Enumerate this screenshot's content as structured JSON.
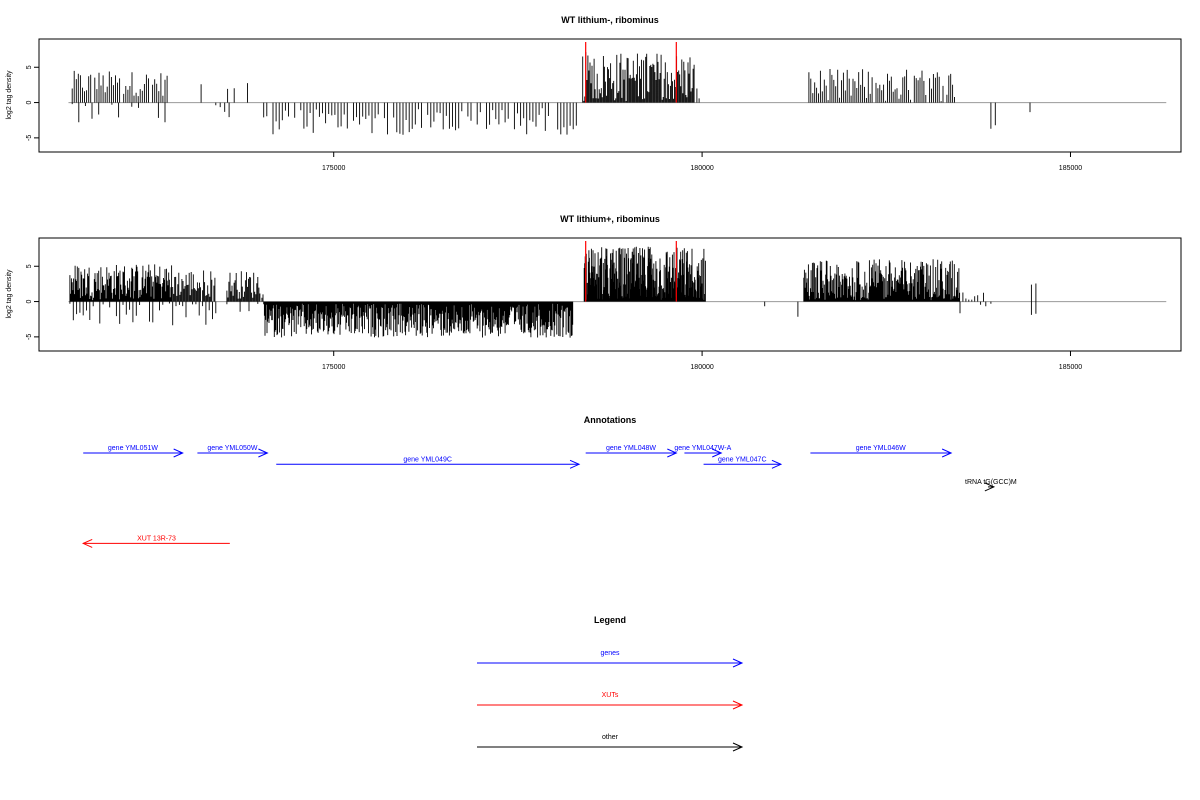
{
  "colors": {
    "bar": "#000000",
    "marker": "#ff0000",
    "baseline": "#999999",
    "gene": "#0000ff",
    "xut": "#ff0000",
    "other": "#000000"
  },
  "chart_data": [
    {
      "type": "bar",
      "title": "WT lithium-, ribominus",
      "ylabel": "log2 tag density",
      "xlim": [
        171000,
        186500
      ],
      "ylim": [
        -7,
        9
      ],
      "xticks": [
        175000,
        180000,
        185000
      ],
      "yticks": [
        -5,
        0,
        5
      ],
      "markers": [
        178420,
        179650
      ],
      "segments": [
        {
          "x0": 171450,
          "x1": 172750,
          "sign": 1,
          "mean": 2.7,
          "amp": 1.8,
          "step": 28,
          "gap": 0.15
        },
        {
          "x0": 171450,
          "x1": 172750,
          "sign": -1,
          "mean": 1.0,
          "amp": 1.8,
          "step": 90,
          "gap": 0.35
        },
        {
          "x0": 173200,
          "x1": 173900,
          "sign": 1,
          "mean": 1.5,
          "amp": 1.5,
          "step": 90,
          "gap": 0.5
        },
        {
          "x0": 173400,
          "x1": 173600,
          "sign": -1,
          "mean": 1.5,
          "amp": 1.5,
          "step": 60,
          "gap": 0.3
        },
        {
          "x0": 174050,
          "x1": 178300,
          "sign": -1,
          "mean": 2.6,
          "amp": 2.0,
          "step": 42,
          "gap": 0.12
        },
        {
          "x0": 178380,
          "x1": 179900,
          "sign": 1,
          "mean": 3.6,
          "amp": 3.6,
          "step": 14,
          "gap": 0.0
        },
        {
          "x0": 179900,
          "x1": 180050,
          "sign": 1,
          "mean": 1.0,
          "amp": 1.0,
          "step": 30,
          "gap": 0.3
        },
        {
          "x0": 181450,
          "x1": 183450,
          "sign": 1,
          "mean": 2.4,
          "amp": 2.4,
          "step": 26,
          "gap": 0.08
        },
        {
          "x0": 183920,
          "x1": 183980,
          "sign": -1,
          "mean": 3.5,
          "amp": 0.5,
          "step": 60,
          "gap": 0
        },
        {
          "x0": 184450,
          "x1": 184500,
          "sign": -1,
          "mean": 1.5,
          "amp": 0.3,
          "step": 60,
          "gap": 0
        }
      ]
    },
    {
      "type": "bar",
      "title": "WT lithium+, ribominus",
      "ylabel": "log2 tag density",
      "xlim": [
        171000,
        186500
      ],
      "ylim": [
        -7,
        9
      ],
      "xticks": [
        175000,
        180000,
        185000
      ],
      "yticks": [
        -5,
        0,
        5
      ],
      "markers": [
        178420,
        179650
      ],
      "segments": [
        {
          "x0": 171420,
          "x1": 172800,
          "sign": 1,
          "mean": 2.8,
          "amp": 2.6,
          "step": 10,
          "gap": 0.0
        },
        {
          "x0": 171420,
          "x1": 173400,
          "sign": -1,
          "mean": 1.5,
          "amp": 2.0,
          "step": 45,
          "gap": 0.15
        },
        {
          "x0": 172800,
          "x1": 173400,
          "sign": 1,
          "mean": 2.6,
          "amp": 2.0,
          "step": 14,
          "gap": 0.05
        },
        {
          "x0": 173550,
          "x1": 174050,
          "sign": 1,
          "mean": 2.4,
          "amp": 2.0,
          "step": 14,
          "gap": 0.05
        },
        {
          "x0": 173550,
          "x1": 174050,
          "sign": -1,
          "mean": 0.9,
          "amp": 0.8,
          "step": 60,
          "gap": 0.3
        },
        {
          "x0": 174050,
          "x1": 178250,
          "sign": -1,
          "mean": 2.7,
          "amp": 2.4,
          "step": 9,
          "gap": 0.0
        },
        {
          "x0": 178400,
          "x1": 180050,
          "sign": 1,
          "mean": 3.8,
          "amp": 4.0,
          "step": 7,
          "gap": 0.0
        },
        {
          "x0": 180850,
          "x1": 180900,
          "sign": -1,
          "mean": 0.8,
          "amp": 0.2,
          "step": 60,
          "gap": 0
        },
        {
          "x0": 181300,
          "x1": 181350,
          "sign": -1,
          "mean": 2.2,
          "amp": 0.2,
          "step": 60,
          "gap": 0
        },
        {
          "x0": 181380,
          "x1": 183500,
          "sign": 1,
          "mean": 2.8,
          "amp": 3.2,
          "step": 9,
          "gap": 0.0
        },
        {
          "x0": 183500,
          "x1": 183900,
          "sign": 1,
          "mean": 0.8,
          "amp": 0.7,
          "step": 40,
          "gap": 0.3
        },
        {
          "x0": 183500,
          "x1": 184000,
          "sign": -1,
          "mean": 1.5,
          "amp": 1.5,
          "step": 70,
          "gap": 0.3
        },
        {
          "x0": 184470,
          "x1": 184530,
          "sign": 1,
          "mean": 2.4,
          "amp": 0.2,
          "step": 60,
          "gap": 0
        },
        {
          "x0": 184470,
          "x1": 184530,
          "sign": -1,
          "mean": 1.9,
          "amp": 0.2,
          "step": 60,
          "gap": 0
        }
      ]
    }
  ],
  "annotations": {
    "title": "Annotations",
    "xlim": [
      171000,
      186500
    ],
    "features": [
      {
        "label": "gene YML051W",
        "kind": "gene",
        "start": 171600,
        "end": 172950,
        "row": 0
      },
      {
        "label": "gene YML050W",
        "kind": "gene",
        "start": 173150,
        "end": 174100,
        "row": 0
      },
      {
        "label": "gene YML049C",
        "kind": "gene",
        "start": 174220,
        "end": 178330,
        "row": 1
      },
      {
        "label": "gene YML048W",
        "kind": "gene",
        "start": 178420,
        "end": 179650,
        "row": 0
      },
      {
        "label": "gene YML047W-A",
        "kind": "gene",
        "start": 179760,
        "end": 180260,
        "row": 0
      },
      {
        "label": "gene YML047C",
        "kind": "gene",
        "start": 180020,
        "end": 181070,
        "row": 1
      },
      {
        "label": "gene YML046W",
        "kind": "gene",
        "start": 181470,
        "end": 183380,
        "row": 0
      },
      {
        "label": "tRNA tG(GCC)M",
        "kind": "other",
        "start": 183880,
        "end": 183960,
        "row": 3
      },
      {
        "label": "XUT 13R-73",
        "kind": "xut",
        "start": 173590,
        "end": 171600,
        "row": 8
      }
    ]
  },
  "legend": {
    "title": "Legend",
    "entries": [
      {
        "label": "genes",
        "kind": "gene"
      },
      {
        "label": "XUTs",
        "kind": "xut"
      },
      {
        "label": "other",
        "kind": "other"
      }
    ]
  }
}
